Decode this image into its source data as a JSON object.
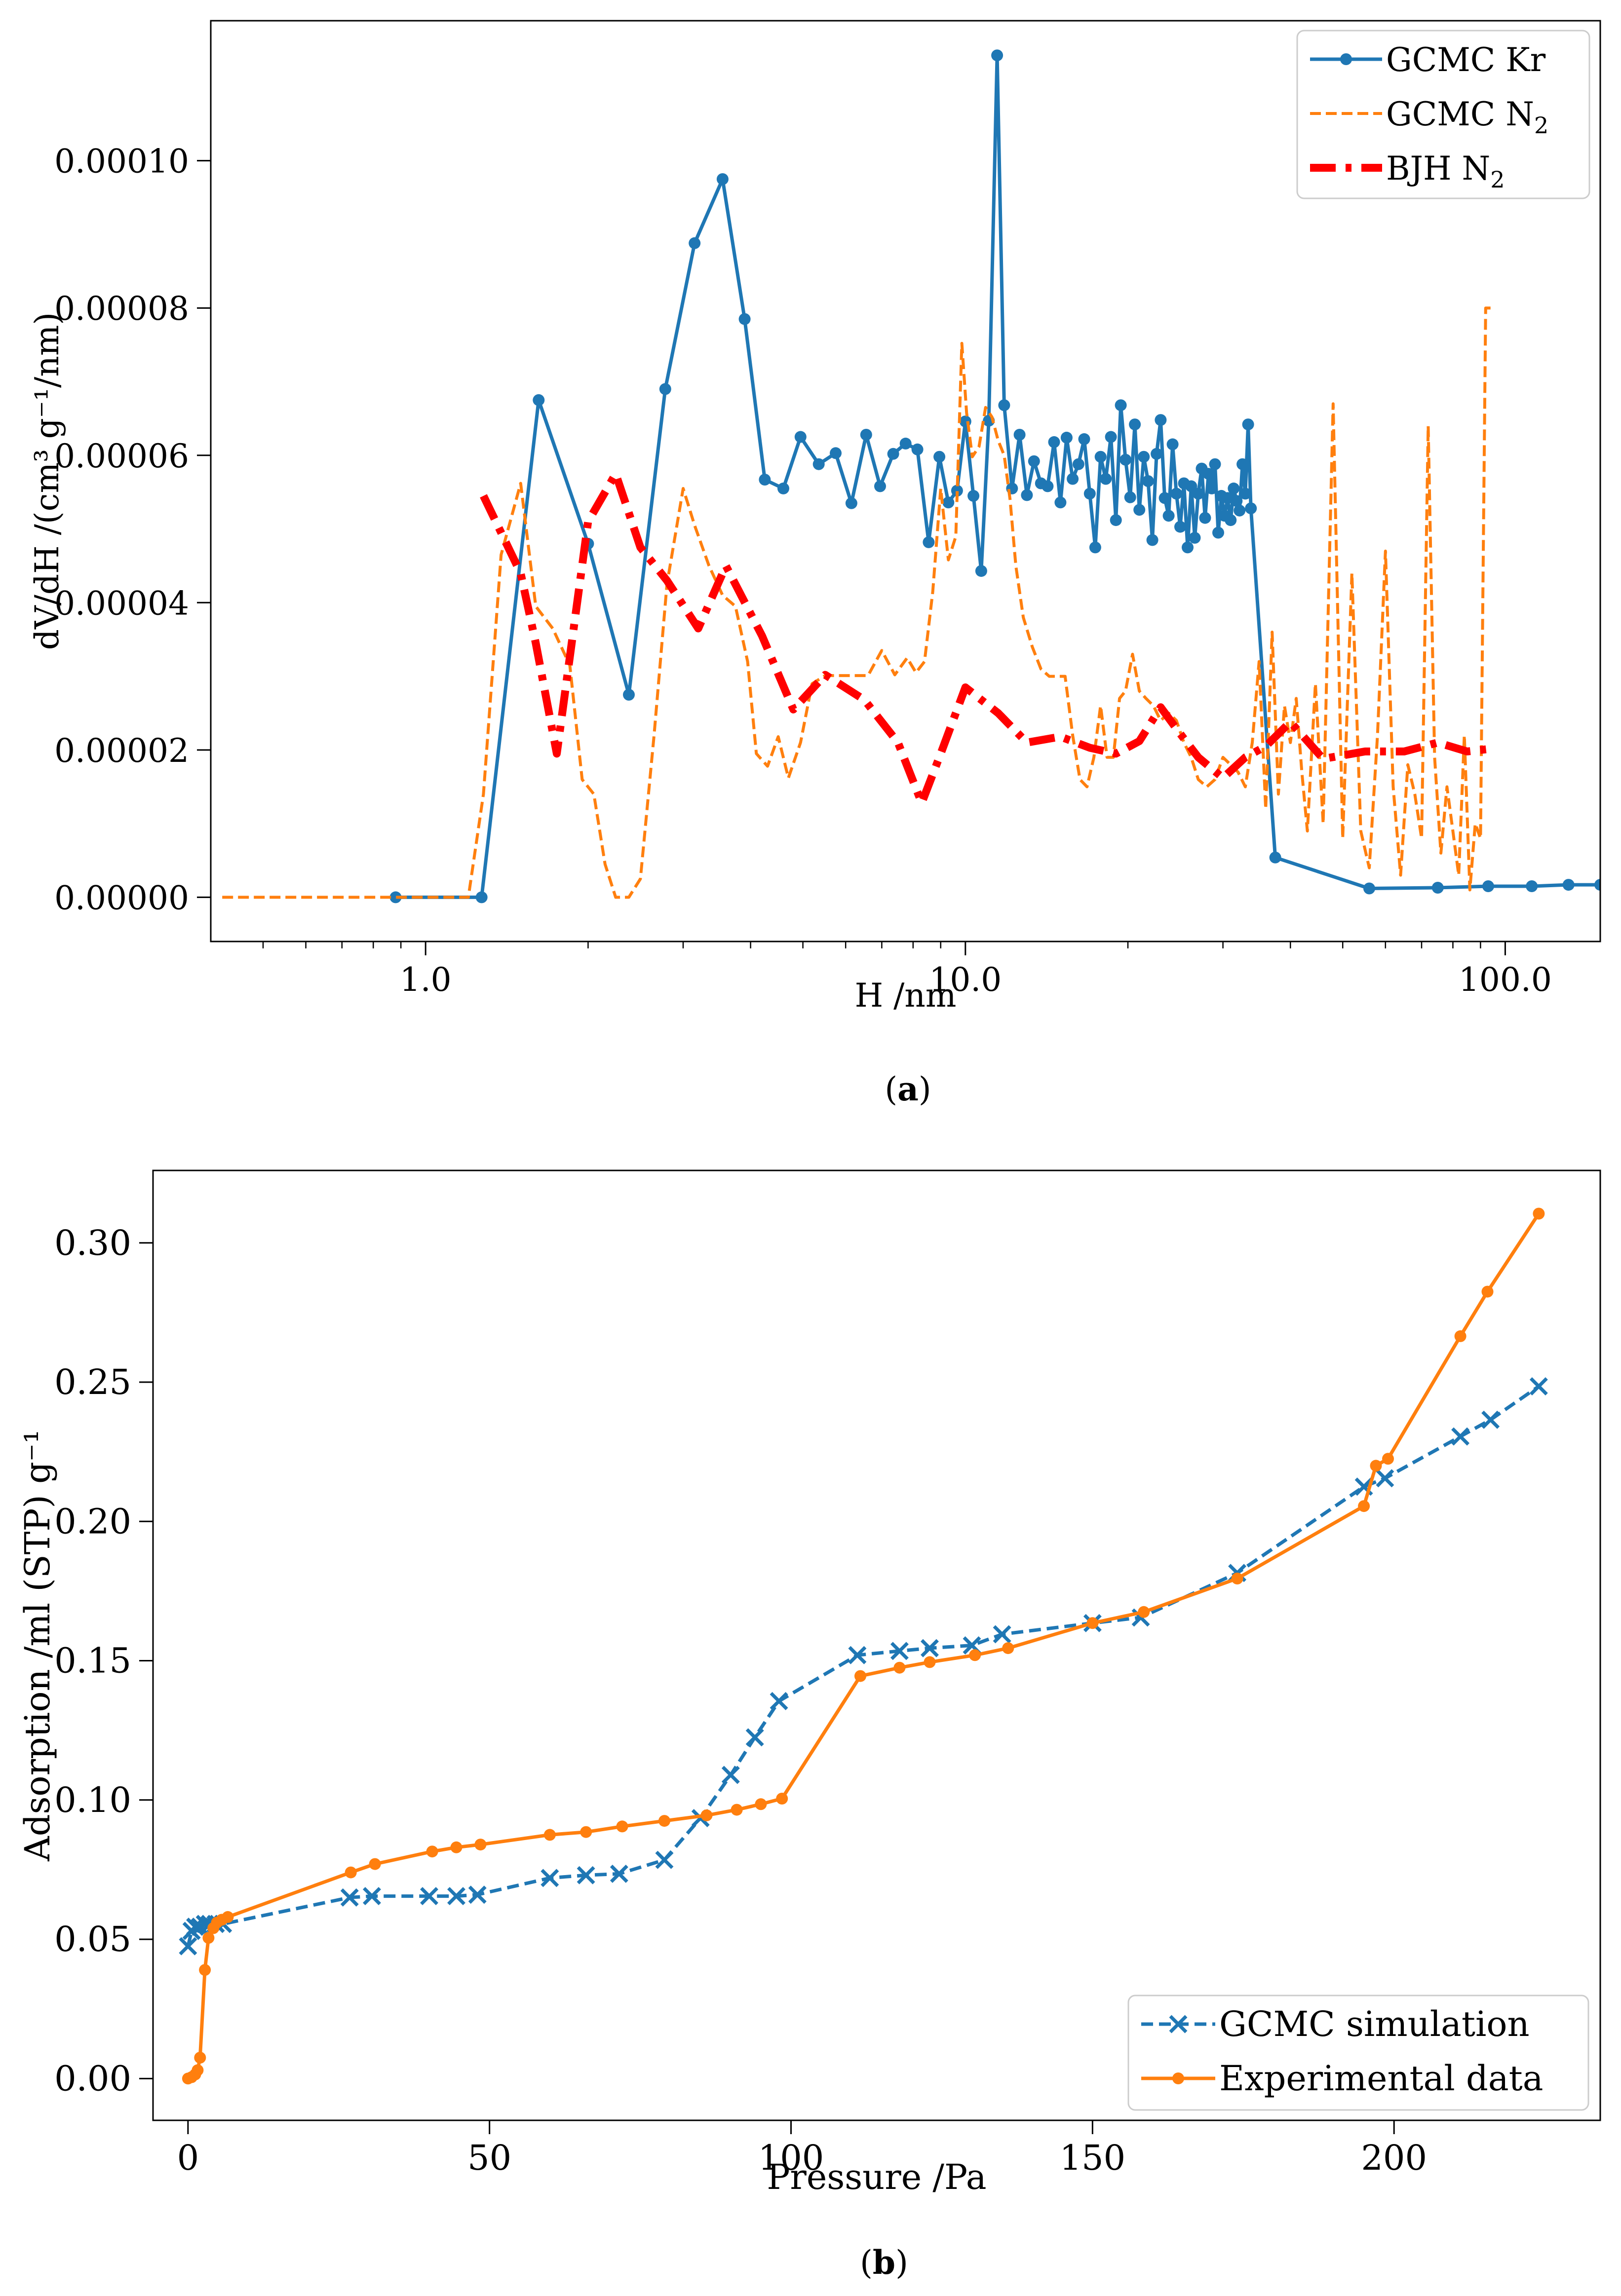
{
  "chart_data": [
    {
      "type": "line",
      "xscale": "log",
      "xlabel": "H /nm",
      "ylabel": "dV/dH /(cm³ g⁻¹/nm)",
      "xlim": [
        0.4,
        150
      ],
      "ylim": [
        -6e-06,
        0.000119
      ],
      "xticks": [
        1,
        10,
        100
      ],
      "xtick_labels": [
        "1.0",
        "10.0",
        "100.0"
      ],
      "yticks": [
        0,
        2e-05,
        4e-05,
        6e-05,
        8e-05,
        0.0001
      ],
      "ytick_labels": [
        "0.00000",
        "0.00002",
        "0.00004",
        "0.00006",
        "0.00008",
        "0.00010"
      ],
      "caption_letter": "a",
      "legend_position": "top-right",
      "series": [
        {
          "name": "GCMC Kr",
          "legend_main": "GCMC Kr",
          "legend_sub": "",
          "color": "#1f77b4",
          "style": "solid-marker",
          "x": [
            0.88,
            1.27,
            1.62,
            2.0,
            2.38,
            2.78,
            3.15,
            3.55,
            3.9,
            4.25,
            4.6,
            4.95,
            5.35,
            5.75,
            6.15,
            6.55,
            6.95,
            7.35,
            7.75,
            8.15,
            8.55,
            8.95,
            9.3,
            9.65,
            10.0,
            10.35,
            10.7,
            11.05,
            11.45,
            11.8,
            12.2,
            12.6,
            13.0,
            13.4,
            13.8,
            14.2,
            14.6,
            15.0,
            15.4,
            15.8,
            16.2,
            16.6,
            17.0,
            17.4,
            17.8,
            18.2,
            18.6,
            19.0,
            19.4,
            19.8,
            20.2,
            20.6,
            21.0,
            21.4,
            21.8,
            22.2,
            22.6,
            23.0,
            23.4,
            23.8,
            24.2,
            24.6,
            25.0,
            25.4,
            25.8,
            26.2,
            26.6,
            27.0,
            27.4,
            27.8,
            28.2,
            28.6,
            29.0,
            29.4,
            29.8,
            30.2,
            30.6,
            31.0,
            31.4,
            31.8,
            32.2,
            32.6,
            33.0,
            33.4,
            33.8,
            37.5,
            56.0,
            75.0,
            93.0,
            112.0,
            131.0,
            150.0
          ],
          "y": [
            0.0,
            0.0,
            6.75e-05,
            4.8e-05,
            2.75e-05,
            6.9e-05,
            8.88e-05,
            9.75e-05,
            7.85e-05,
            5.67e-05,
            5.55e-05,
            6.25e-05,
            5.88e-05,
            6.03e-05,
            5.35e-05,
            6.28e-05,
            5.58e-05,
            6.02e-05,
            6.16e-05,
            6.08e-05,
            4.82e-05,
            5.98e-05,
            5.36e-05,
            5.52e-05,
            6.46e-05,
            5.45e-05,
            4.43e-05,
            6.47e-05,
            0.0001143,
            6.68e-05,
            5.55e-05,
            6.28e-05,
            5.46e-05,
            5.92e-05,
            5.62e-05,
            5.58e-05,
            6.18e-05,
            5.36e-05,
            6.24e-05,
            5.68e-05,
            5.88e-05,
            6.22e-05,
            5.48e-05,
            4.75e-05,
            5.98e-05,
            5.68e-05,
            6.25e-05,
            5.12e-05,
            6.68e-05,
            5.94e-05,
            5.43e-05,
            6.42e-05,
            5.26e-05,
            5.98e-05,
            5.65e-05,
            4.85e-05,
            6.02e-05,
            6.48e-05,
            5.42e-05,
            5.18e-05,
            6.15e-05,
            5.48e-05,
            5.03e-05,
            5.62e-05,
            4.75e-05,
            5.58e-05,
            4.88e-05,
            5.48e-05,
            5.82e-05,
            5.15e-05,
            5.75e-05,
            5.55e-05,
            5.88e-05,
            4.95e-05,
            5.45e-05,
            5.18e-05,
            5.42e-05,
            5.12e-05,
            5.55e-05,
            5.38e-05,
            5.25e-05,
            5.88e-05,
            5.48e-05,
            6.42e-05,
            5.28e-05,
            5.4e-06,
            1.2e-06,
            1.3e-06,
            1.5e-06,
            1.5e-06,
            1.7e-06,
            1.7e-06
          ]
        },
        {
          "name": "GCMC N2",
          "legend_main": "GCMC N",
          "legend_sub": "2",
          "color": "#ff7f0e",
          "style": "dashed",
          "x": [
            0.42,
            1.2,
            1.28,
            1.38,
            1.5,
            1.6,
            1.72,
            1.85,
            1.95,
            2.05,
            2.15,
            2.25,
            2.38,
            2.5,
            2.65,
            2.8,
            3.0,
            3.15,
            3.35,
            3.55,
            3.75,
            3.95,
            4.1,
            4.3,
            4.5,
            4.7,
            4.95,
            5.2,
            5.5,
            5.8,
            6.2,
            6.6,
            7.0,
            7.4,
            7.8,
            8.1,
            8.4,
            8.7,
            9.0,
            9.3,
            9.6,
            9.85,
            10.05,
            10.3,
            10.6,
            10.9,
            11.2,
            11.5,
            11.8,
            12.1,
            12.4,
            12.8,
            13.3,
            13.8,
            14.3,
            14.8,
            15.3,
            15.8,
            16.3,
            16.8,
            17.3,
            17.8,
            18.3,
            18.8,
            19.3,
            19.8,
            20.4,
            21.0,
            21.6,
            22.3,
            23.0,
            23.8,
            24.6,
            25.4,
            26.2,
            27.0,
            28.0,
            29.0,
            30.0,
            31.0,
            32.0,
            33.0,
            34.0,
            35.0,
            36.0,
            37.0,
            38.0,
            39.0,
            40.0,
            41.0,
            42.0,
            43.0,
            44.5,
            46.0,
            48.0,
            50.0,
            52.0,
            54.0,
            56.0,
            58.0,
            60.0,
            62.0,
            64.0,
            66.0,
            68.0,
            70.0,
            72.0,
            74.0,
            76.0,
            78.0,
            80.0,
            82.0,
            84.0,
            86.0,
            88.0,
            90.0,
            92.0,
            94.0
          ],
          "y": [
            0.0,
            0.0,
            1.4e-05,
            4.65e-05,
            5.62e-05,
            3.95e-05,
            3.65e-05,
            3.15e-05,
            1.6e-05,
            1.4e-05,
            4.5e-06,
            0.0,
            0.0,
            2.5e-06,
            2.2e-05,
            4.25e-05,
            5.55e-05,
            5.05e-05,
            4.5e-05,
            4.1e-05,
            3.95e-05,
            3.2e-05,
            1.95e-05,
            1.78e-05,
            2.18e-05,
            1.62e-05,
            2.1e-05,
            2.9e-05,
            3.01e-05,
            3.01e-05,
            3.01e-05,
            3.01e-05,
            3.35e-05,
            3.02e-05,
            3.25e-05,
            3.05e-05,
            3.2e-05,
            4.15e-05,
            5.55e-05,
            4.58e-05,
            4.9e-05,
            7.52e-05,
            6.58e-05,
            5.98e-05,
            6.12e-05,
            6.65e-05,
            6.52e-05,
            6.2e-05,
            6e-05,
            5.4e-05,
            4.5e-05,
            3.8e-05,
            3.4e-05,
            3.1e-05,
            3e-05,
            3e-05,
            3e-05,
            2.2e-05,
            1.6e-05,
            1.5e-05,
            1.9e-05,
            2.6e-05,
            1.9e-05,
            1.9e-05,
            2.7e-05,
            2.8e-05,
            3.3e-05,
            2.8e-05,
            2.7e-05,
            2.6e-05,
            2.4e-05,
            2.5e-05,
            2.4e-05,
            2.1e-05,
            1.9e-05,
            1.6e-05,
            1.5e-05,
            1.6e-05,
            1.9e-05,
            1.8e-05,
            1.7e-05,
            1.5e-05,
            2.1e-05,
            3.2e-05,
            1.2e-05,
            3.6e-05,
            1.4e-05,
            2.6e-05,
            2.1e-05,
            2.7e-05,
            1.7e-05,
            9e-06,
            2.9e-05,
            1e-05,
            6.7e-05,
            8e-06,
            4.4e-05,
            9e-06,
            4e-06,
            2.2e-05,
            4.7e-05,
            1.5e-05,
            3e-06,
            1.8e-05,
            1.4e-05,
            8e-06,
            6.4e-05,
            1.9e-05,
            6e-06,
            1.5e-05,
            9e-06,
            3e-06,
            2.2e-05,
            1e-06,
            1e-05,
            8e-06,
            8e-05,
            8e-05
          ],
          "trim_last": 1
        },
        {
          "name": "BJH N2",
          "legend_main": "BJH N",
          "legend_sub": "2",
          "color": "#ff0000",
          "style": "dashdot-thick",
          "x": [
            1.28,
            1.5,
            1.6,
            1.75,
            2.0,
            2.25,
            2.5,
            2.8,
            3.2,
            3.6,
            4.2,
            4.8,
            5.5,
            6.5,
            7.5,
            8.3,
            9.0,
            10.0,
            11.5,
            13.0,
            15.0,
            17.0,
            19.0,
            21.0,
            23.0,
            25.0,
            27.0,
            30.0,
            33.0,
            36.0,
            40.0,
            46.0,
            55.0,
            65.0,
            75.0,
            85.0,
            95.0
          ],
          "y": [
            5.45e-05,
            4.4e-05,
            3.45e-05,
            1.95e-05,
            5.1e-05,
            5.75e-05,
            4.75e-05,
            4.3e-05,
            3.65e-05,
            4.5e-05,
            3.55e-05,
            2.55e-05,
            3.02e-05,
            2.68e-05,
            2.1e-05,
            1.28e-05,
            1.95e-05,
            2.85e-05,
            2.5e-05,
            2.1e-05,
            2.18e-05,
            2.03e-05,
            1.95e-05,
            2.12e-05,
            2.58e-05,
            2.22e-05,
            1.9e-05,
            1.62e-05,
            1.9e-05,
            2.05e-05,
            2.38e-05,
            1.88e-05,
            1.98e-05,
            1.98e-05,
            2.1e-05,
            1.98e-05,
            2.02e-05
          ]
        }
      ]
    },
    {
      "type": "line",
      "xscale": "linear",
      "xlabel": "Pressure /Pa",
      "ylabel": "Adsorption /ml (STP) g⁻¹",
      "xlim": [
        -5.8,
        234.2
      ],
      "ylim": [
        -0.015,
        0.326
      ],
      "xticks": [
        0,
        50,
        100,
        150,
        200
      ],
      "xtick_labels": [
        "0",
        "50",
        "100",
        "150",
        "200"
      ],
      "yticks": [
        0.0,
        0.05,
        0.1,
        0.15,
        0.2,
        0.25,
        0.3
      ],
      "ytick_labels": [
        "0.00",
        "0.05",
        "0.10",
        "0.15",
        "0.20",
        "0.25",
        "0.30"
      ],
      "caption_letter": "b",
      "legend_position": "bottom-right",
      "series": [
        {
          "name": "GCMC simulation",
          "legend_main": "GCMC simulation",
          "legend_sub": "",
          "color": "#1f77b4",
          "style": "dashed-x",
          "x": [
            0.0,
            0.6,
            1.2,
            2.0,
            2.8,
            3.6,
            4.6,
            5.8,
            26.8,
            30.5,
            40.0,
            44.5,
            48.0,
            60.0,
            66.0,
            71.5,
            79.0,
            85.0,
            90.0,
            94.0,
            98.0,
            111.0,
            118.0,
            123.0,
            130.0,
            135.0,
            150.0,
            158.0,
            174.0,
            195.0,
            198.5,
            211.0,
            216.0,
            224.0
          ],
          "y": [
            0.0475,
            0.053,
            0.0545,
            0.0545,
            0.0555,
            0.0555,
            0.0555,
            0.0555,
            0.065,
            0.0655,
            0.0655,
            0.0655,
            0.066,
            0.072,
            0.073,
            0.0735,
            0.0785,
            0.0935,
            0.109,
            0.1225,
            0.1355,
            0.152,
            0.1535,
            0.1545,
            0.1555,
            0.1595,
            0.1635,
            0.1655,
            0.1815,
            0.2125,
            0.2155,
            0.2305,
            0.2365,
            0.2485
          ]
        },
        {
          "name": "Experimental data",
          "legend_main": "Experimental data",
          "legend_sub": "",
          "color": "#ff7f0e",
          "style": "solid-marker",
          "x": [
            0.0,
            0.6,
            1.2,
            1.6,
            2.0,
            2.8,
            3.4,
            4.2,
            4.8,
            5.6,
            6.6,
            27.0,
            31.0,
            40.5,
            44.5,
            48.5,
            60.0,
            66.0,
            72.0,
            79.0,
            86.0,
            91.0,
            95.0,
            98.5,
            111.5,
            118.0,
            123.0,
            130.5,
            136.0,
            150.0,
            158.5,
            174.0,
            195.0,
            197.0,
            199.0,
            211.0,
            215.5,
            224.0
          ],
          "y": [
            0.0,
            0.0005,
            0.0015,
            0.003,
            0.0075,
            0.039,
            0.0505,
            0.054,
            0.056,
            0.057,
            0.058,
            0.074,
            0.077,
            0.0815,
            0.083,
            0.084,
            0.0875,
            0.0885,
            0.0905,
            0.0925,
            0.0945,
            0.0965,
            0.0985,
            0.1005,
            0.1445,
            0.1475,
            0.1495,
            0.152,
            0.1545,
            0.1635,
            0.1675,
            0.1795,
            0.2055,
            0.22,
            0.2225,
            0.2665,
            0.2825,
            0.3105
          ]
        }
      ]
    }
  ]
}
